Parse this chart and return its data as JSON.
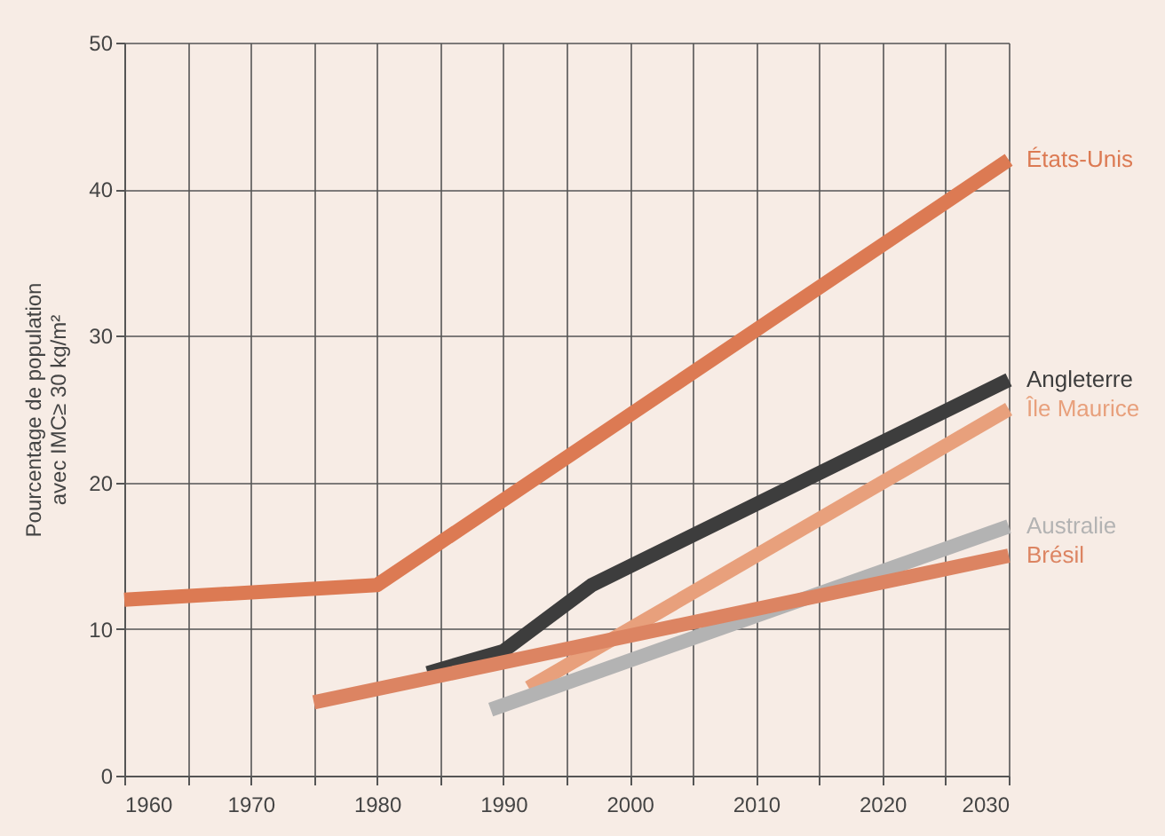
{
  "chart_data": {
    "type": "line",
    "ylabel": "Pourcentage de population\navec IMC≥ 30 kg/m²",
    "xlim": [
      1960,
      2030
    ],
    "xticks": [
      1960,
      {
        "value": 1965,
        "label": null
      },
      1970,
      {
        "value": 1975,
        "label": null
      },
      1980,
      {
        "value": 1985,
        "label": null
      },
      1990,
      {
        "value": 1995,
        "label": null
      },
      2000,
      {
        "value": 2005,
        "label": null
      },
      2010,
      {
        "value": 2015,
        "label": null
      },
      2020,
      {
        "value": 2025,
        "label": null
      },
      2030
    ],
    "ylim": [
      0,
      50
    ],
    "yticks": [
      0,
      10,
      20,
      30,
      40,
      50
    ],
    "grid": true,
    "series": [
      {
        "name": "États-Unis",
        "color": "#dc7a53",
        "x": [
          1960,
          1980,
          2030
        ],
        "values": [
          12,
          13,
          42
        ]
      },
      {
        "name": "Angleterre",
        "color": "#3d3d3d",
        "x": [
          1984,
          1990,
          1997,
          2030
        ],
        "values": [
          7,
          8.5,
          13,
          27
        ]
      },
      {
        "name": "Île Maurice",
        "color": "#e8a07c",
        "x": [
          1992,
          2030
        ],
        "values": [
          6,
          25
        ]
      },
      {
        "name": "Australie",
        "color": "#b3b3b3",
        "x": [
          1989,
          2030
        ],
        "values": [
          4.5,
          17
        ]
      },
      {
        "name": "Brésil",
        "color": "#dc8462",
        "x": [
          1975,
          2030
        ],
        "values": [
          5,
          15
        ]
      }
    ]
  }
}
